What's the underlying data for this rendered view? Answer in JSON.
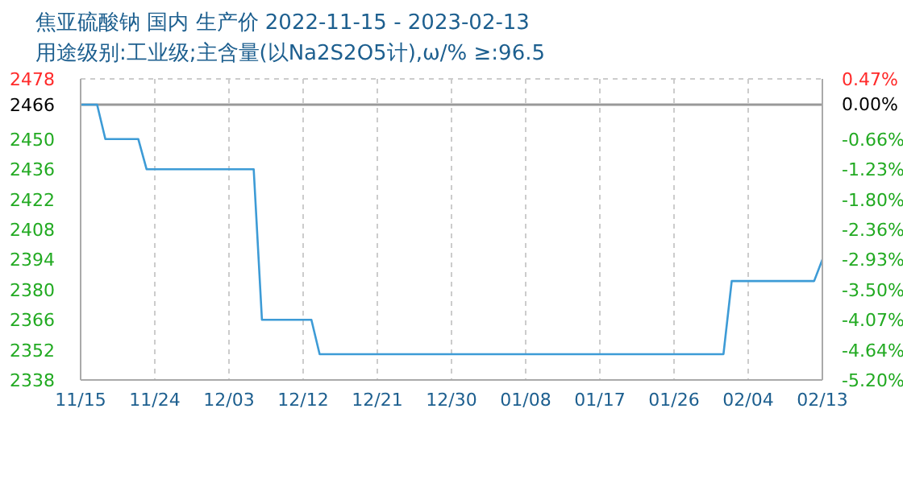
{
  "chart_data": {
    "type": "line",
    "title": "焦亚硫酸钠 国内 生产价 2022-11-15 - 2023-02-13",
    "subtitle": "用途级别:工业级;主含量(以Na2S2O5计),ω/% ≥:96.5",
    "x": [
      "2022-11-15",
      "2022-11-17",
      "2022-11-18",
      "2022-11-22",
      "2022-11-23",
      "2022-12-06",
      "2022-12-07",
      "2022-12-13",
      "2022-12-14",
      "2023-02-01",
      "2023-02-02",
      "2023-02-12",
      "2023-02-13"
    ],
    "series": [
      {
        "color": "#3d9bd6",
        "values": [
          2466,
          2466,
          2450,
          2450,
          2436,
          2436,
          2366,
          2366,
          2350,
          2350,
          2384,
          2384,
          2394
        ]
      }
    ],
    "xlim": [
      "2022-11-15",
      "2023-02-13"
    ],
    "xticks": [
      {
        "value": "2022-11-15",
        "label": "11/15"
      },
      {
        "value": "2022-11-24",
        "label": "11/24"
      },
      {
        "value": "2022-12-03",
        "label": "12/03"
      },
      {
        "value": "2022-12-12",
        "label": "12/12"
      },
      {
        "value": "2022-12-21",
        "label": "12/21"
      },
      {
        "value": "2022-12-30",
        "label": "12/30"
      },
      {
        "value": "2023-01-08",
        "label": "01/08"
      },
      {
        "value": "2023-01-17",
        "label": "01/17"
      },
      {
        "value": "2023-01-26",
        "label": "01/26"
      },
      {
        "value": "2023-02-04",
        "label": "02/04"
      },
      {
        "value": "2023-02-13",
        "label": "02/13"
      }
    ],
    "ylim": [
      2338,
      2478
    ],
    "yticks": [
      2338,
      2352,
      2366,
      2380,
      2394,
      2408,
      2422,
      2436,
      2450,
      2466,
      2478
    ],
    "y2lim": [
      -5.2,
      0.47
    ],
    "y2ticks": [
      {
        "value": -5.2,
        "label": "-5.20%"
      },
      {
        "value": -4.64,
        "label": "-4.64%"
      },
      {
        "value": -4.07,
        "label": "-4.07%"
      },
      {
        "value": -3.5,
        "label": "-3.50%"
      },
      {
        "value": -2.93,
        "label": "-2.93%"
      },
      {
        "value": -2.36,
        "label": "-2.36%"
      },
      {
        "value": -1.8,
        "label": "-1.80%"
      },
      {
        "value": -1.23,
        "label": "-1.23%"
      },
      {
        "value": -0.66,
        "label": "-0.66%"
      },
      {
        "value": 0,
        "label": "0.00%"
      },
      {
        "value": 0.47,
        "label": "0.47%"
      }
    ],
    "ref_lines": [
      {
        "axis": "y",
        "value": 2466,
        "color": "#999999"
      }
    ],
    "grid": true
  }
}
